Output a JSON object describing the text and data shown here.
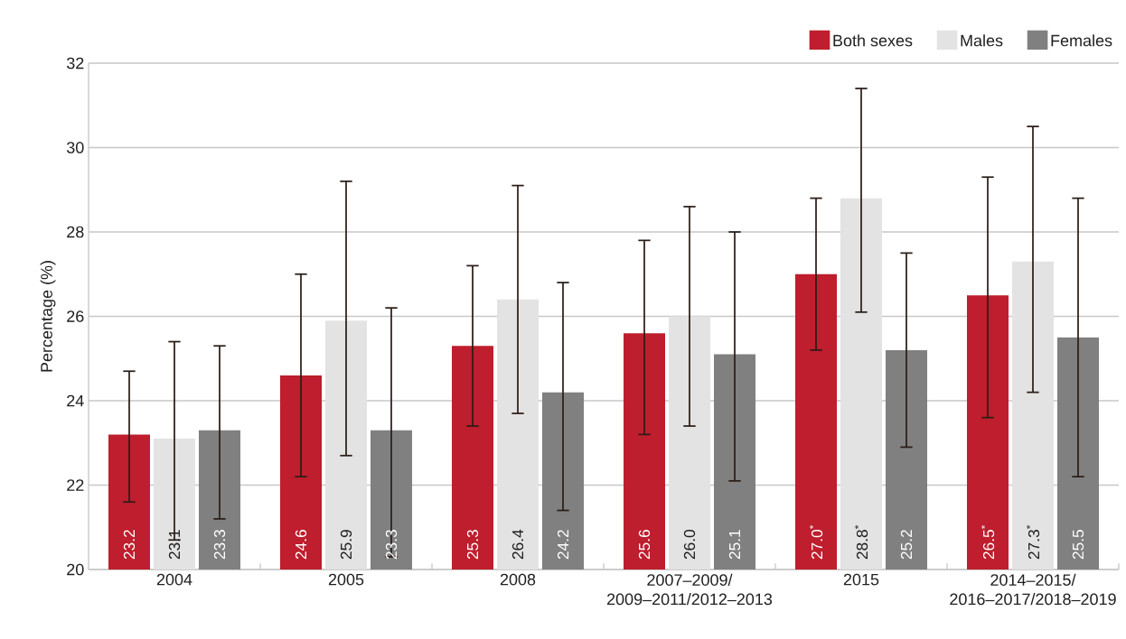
{
  "chart_data": {
    "type": "bar",
    "ylabel": "Percentage (%)",
    "categories": [
      "2004",
      "2005",
      "2008",
      "2007–2009/2009–2011/2012–2013",
      "2015",
      "2014–2015/2016–2017/2018–2019"
    ],
    "ylim": [
      20,
      32
    ],
    "yticks": [
      20,
      22,
      24,
      26,
      28,
      30,
      32
    ],
    "grid": "y",
    "legend": "top right",
    "series": [
      {
        "name": "Both sexes",
        "color": "#be1e2d",
        "values": [
          23.2,
          24.6,
          25.3,
          25.6,
          27.0,
          26.5
        ],
        "value_labels": [
          "23.2",
          "24.6",
          "25.3",
          "25.6",
          "27.0$^{*}$",
          "26.5$^{*}$"
        ],
        "errors": [
          [
            21.6,
            24.7
          ],
          [
            22.2,
            27.0
          ],
          [
            23.4,
            27.2
          ],
          [
            23.2,
            27.8
          ],
          [
            25.2,
            28.8
          ],
          [
            23.6,
            29.3
          ]
        ]
      },
      {
        "name": "Males",
        "color": "#e3e3e3",
        "values": [
          23.1,
          25.9,
          26.4,
          26.0,
          28.8,
          27.3
        ],
        "value_labels": [
          "23.1",
          "25.9",
          "26.4",
          "26.0",
          "28.8$^{*}$",
          "27.3$^{*}$"
        ],
        "errors": [
          [
            20.7,
            25.4
          ],
          [
            22.7,
            29.2
          ],
          [
            23.7,
            29.1
          ],
          [
            23.4,
            28.6
          ],
          [
            26.1,
            31.4
          ],
          [
            24.2,
            30.5
          ]
        ]
      },
      {
        "name": "Females",
        "color": "#808080",
        "values": [
          23.3,
          23.3,
          24.2,
          25.1,
          25.2,
          25.5
        ],
        "value_labels": [
          "23.3",
          "23.3",
          "24.2",
          "25.1",
          "25.2",
          "25.5"
        ],
        "errors": [
          [
            21.2,
            25.3
          ],
          [
            20.3,
            26.2
          ],
          [
            21.4,
            26.8
          ],
          [
            22.1,
            28.0
          ],
          [
            22.9,
            27.5
          ],
          [
            22.2,
            28.8
          ]
        ]
      }
    ]
  }
}
